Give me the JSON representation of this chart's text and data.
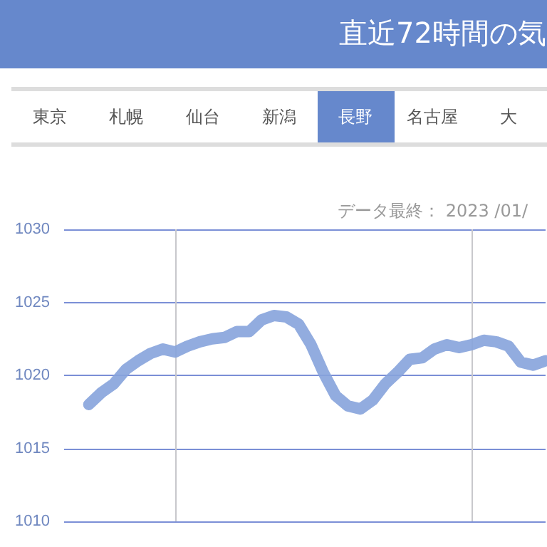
{
  "chart_data": {
    "type": "line",
    "title": "直近72時間の気",
    "annotations": [
      "データ最終： 2023 /01/",
      "東京",
      "札幌",
      "仙台",
      "新潟",
      "長野",
      "名古屋",
      "大"
    ],
    "categories": [
      null,
      null,
      null,
      null,
      null,
      null,
      null,
      null,
      null,
      null,
      null,
      null,
      null,
      null,
      null,
      null,
      null,
      null,
      null,
      null,
      null,
      null,
      null,
      null,
      null,
      null,
      null,
      null,
      null,
      null,
      null,
      null,
      null,
      null,
      null,
      null,
      null,
      null,
      null,
      null
    ],
    "series": [
      {
        "color": "#86a3dc",
        "values": [
          null,
          null,
          1018.0,
          1018.8,
          1019.4,
          1020.4,
          1021.0,
          1021.5,
          1021.8,
          1021.6,
          1022.0,
          1022.3,
          1022.5,
          1022.6,
          1023.0,
          1023.0,
          1023.8,
          1024.1,
          1024.0,
          1023.5,
          1022.1,
          1020.2,
          1018.6,
          1017.9,
          1017.7,
          1018.3,
          1019.4,
          1020.2,
          1021.1,
          1021.2,
          1021.8,
          1022.1,
          1021.9,
          1022.1,
          1022.4,
          1022.3,
          1022.0,
          1020.9,
          1020.7,
          1021.0
        ]
      }
    ],
    "ylim": [
      1010,
      1030
    ],
    "yticks": [
      1010,
      1015,
      1020,
      1025,
      1030
    ],
    "tick_labels": "y",
    "grid": true,
    "line_style": "solid"
  }
}
